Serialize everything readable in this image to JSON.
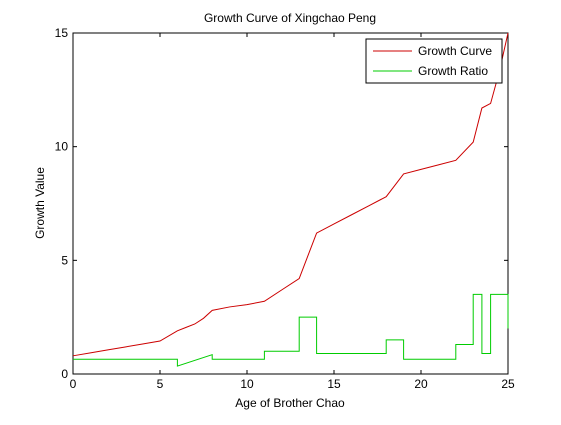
{
  "chart_data": {
    "type": "line",
    "title": "Growth Curve of Xingchao Peng",
    "xlabel": "Age of Brother Chao",
    "ylabel": "Growth Value",
    "xlim": [
      0,
      25
    ],
    "ylim": [
      0,
      15
    ],
    "xticks": [
      0,
      5,
      10,
      15,
      20,
      25
    ],
    "yticks": [
      0,
      5,
      10,
      15
    ],
    "grid": false,
    "legend_position": "top-right",
    "series": [
      {
        "name": "Growth Curve",
        "color": "#cc0000",
        "points": [
          [
            0,
            0.8
          ],
          [
            1,
            0.93
          ],
          [
            2,
            1.06
          ],
          [
            3,
            1.19
          ],
          [
            4,
            1.32
          ],
          [
            5,
            1.45
          ],
          [
            6,
            1.9
          ],
          [
            6.5,
            2.05
          ],
          [
            7,
            2.2
          ],
          [
            7.5,
            2.45
          ],
          [
            8,
            2.8
          ],
          [
            9,
            2.95
          ],
          [
            10,
            3.05
          ],
          [
            11,
            3.2
          ],
          [
            12,
            3.7
          ],
          [
            13,
            4.2
          ],
          [
            14,
            6.2
          ],
          [
            15,
            6.6
          ],
          [
            16,
            7.0
          ],
          [
            17,
            7.4
          ],
          [
            18,
            7.8
          ],
          [
            19,
            8.8
          ],
          [
            20,
            9.0
          ],
          [
            21,
            9.2
          ],
          [
            22,
            9.4
          ],
          [
            23,
            10.2
          ],
          [
            23.5,
            11.7
          ],
          [
            24,
            11.9
          ],
          [
            24.5,
            13.3
          ],
          [
            25,
            15.0
          ]
        ]
      },
      {
        "name": "Growth Ratio",
        "color": "#00cc00",
        "points": [
          [
            0,
            0.65
          ],
          [
            6,
            0.65
          ],
          [
            6,
            0.35
          ],
          [
            8,
            0.85
          ],
          [
            8,
            0.65
          ],
          [
            11,
            0.65
          ],
          [
            11,
            1.0
          ],
          [
            13,
            1.0
          ],
          [
            13,
            2.5
          ],
          [
            14,
            2.5
          ],
          [
            14,
            0.9
          ],
          [
            18,
            0.9
          ],
          [
            18,
            1.5
          ],
          [
            19,
            1.5
          ],
          [
            19,
            0.65
          ],
          [
            22,
            0.65
          ],
          [
            22,
            1.3
          ],
          [
            23,
            1.3
          ],
          [
            23,
            3.5
          ],
          [
            23.5,
            3.5
          ],
          [
            23.5,
            0.9
          ],
          [
            24,
            0.9
          ],
          [
            24,
            3.5
          ],
          [
            25,
            3.5
          ],
          [
            25,
            2.0
          ]
        ]
      }
    ]
  }
}
